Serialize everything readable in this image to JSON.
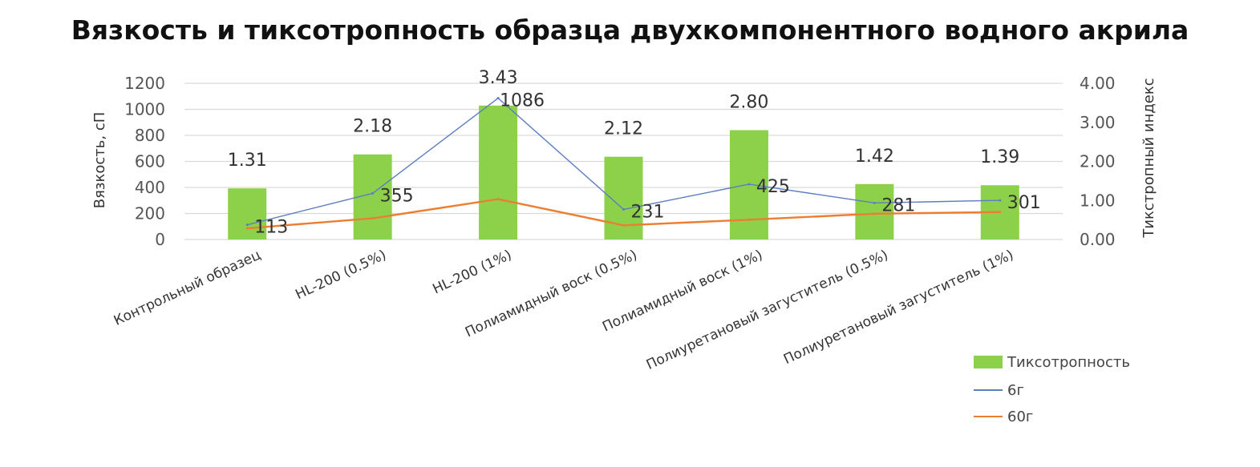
{
  "chart_data": {
    "type": "bar",
    "title": "Вязкость и тиксотропность образца двухкомпонентного водного акрила",
    "ylabel": "Вязкость, сП",
    "y2label": "Тикстропный индекс",
    "ylim": [
      0,
      1200
    ],
    "y2lim": [
      0,
      4
    ],
    "yticks": [
      "1200",
      "1000",
      "800",
      "600",
      "400",
      "200",
      "0"
    ],
    "y2ticks": [
      "4.00",
      "3.00",
      "2.00",
      "1.00",
      "0.00"
    ],
    "grid": true,
    "legend_position": "bottom-right",
    "categories": [
      "Контрольный образец",
      "HL-200  (0.5%)",
      "HL-200 (1%)",
      "Полиамидный воск (0.5%)",
      "Полиамидный воск (1%)",
      "Полиуретановый загуститель (0.5%)",
      "Полиуретановый загуститель (1%)"
    ],
    "series": [
      {
        "name": "Тиксотропность",
        "kind": "bar",
        "axis": "right",
        "color": "#8DD14A",
        "values": [
          1.31,
          2.18,
          3.43,
          2.12,
          2.8,
          1.42,
          1.39
        ],
        "labels": [
          "1.31",
          "2.18",
          "3.43",
          "2.12",
          "2.80",
          "1.42",
          "1.39"
        ]
      },
      {
        "name": "6г",
        "kind": "line",
        "axis": "left",
        "color": "#5B7EC0",
        "values": [
          113,
          355,
          1086,
          231,
          425,
          281,
          301
        ],
        "labels": [
          "113",
          "355",
          "1086",
          "231",
          "425",
          "281",
          "301"
        ]
      },
      {
        "name": "60г",
        "kind": "line",
        "axis": "left",
        "color": "#ED7D31",
        "values": [
          86,
          163,
          310,
          109,
          152,
          198,
          211
        ]
      }
    ]
  }
}
